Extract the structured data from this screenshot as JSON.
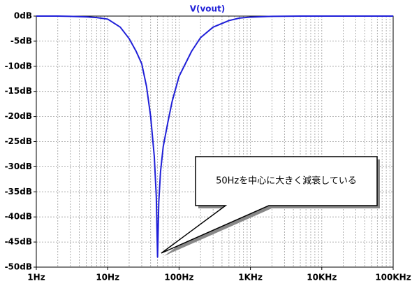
{
  "chart_data": {
    "type": "line",
    "title": "V(vout)",
    "x": [
      1,
      2,
      3,
      5,
      7,
      10,
      15,
      20,
      25,
      30,
      35,
      40,
      45,
      48,
      50,
      52,
      55,
      60,
      70,
      80,
      100,
      150,
      200,
      300,
      500,
      700,
      1000,
      2000,
      5000,
      10000,
      100000
    ],
    "values": [
      0,
      0,
      -0.05,
      -0.15,
      -0.3,
      -0.6,
      -2.2,
      -4.5,
      -7,
      -9.5,
      -14,
      -20,
      -28,
      -36,
      -48,
      -37,
      -31,
      -26,
      -21,
      -17,
      -12,
      -7,
      -4.3,
      -2.2,
      -0.9,
      -0.4,
      -0.2,
      -0.05,
      0,
      0,
      0
    ],
    "color": "#1f1fd8",
    "log_x": true,
    "grid": true,
    "xlim": [
      1,
      100000
    ],
    "xticks": [
      {
        "value": 1,
        "label": "1Hz"
      },
      {
        "value": 10,
        "label": "10Hz"
      },
      {
        "value": 100,
        "label": "100Hz"
      },
      {
        "value": 1000,
        "label": "1KHz"
      },
      {
        "value": 10000,
        "label": "10KHz"
      },
      {
        "value": 100000,
        "label": "100KHz"
      }
    ],
    "xminorticks": [
      2,
      3,
      4,
      5,
      6,
      7,
      8,
      9,
      20,
      30,
      40,
      50,
      60,
      70,
      80,
      90,
      200,
      300,
      400,
      500,
      600,
      700,
      800,
      900,
      2000,
      3000,
      4000,
      5000,
      6000,
      7000,
      8000,
      9000,
      20000,
      30000,
      40000,
      50000,
      60000,
      70000,
      80000,
      90000
    ],
    "ylim": [
      -50,
      0
    ],
    "yticks": [
      {
        "value": 0,
        "label": "0dB"
      },
      {
        "value": -5,
        "label": "-5dB"
      },
      {
        "value": -10,
        "label": "-10dB"
      },
      {
        "value": -15,
        "label": "-15dB"
      },
      {
        "value": -20,
        "label": "-20dB"
      },
      {
        "value": -25,
        "label": "-25dB"
      },
      {
        "value": -30,
        "label": "-30dB"
      },
      {
        "value": -35,
        "label": "-35dB"
      },
      {
        "value": -40,
        "label": "-40dB"
      },
      {
        "value": -45,
        "label": "-45dB"
      },
      {
        "value": -50,
        "label": "-50dB"
      }
    ],
    "annotation": "50Hzを中心に大きく減衰している"
  }
}
